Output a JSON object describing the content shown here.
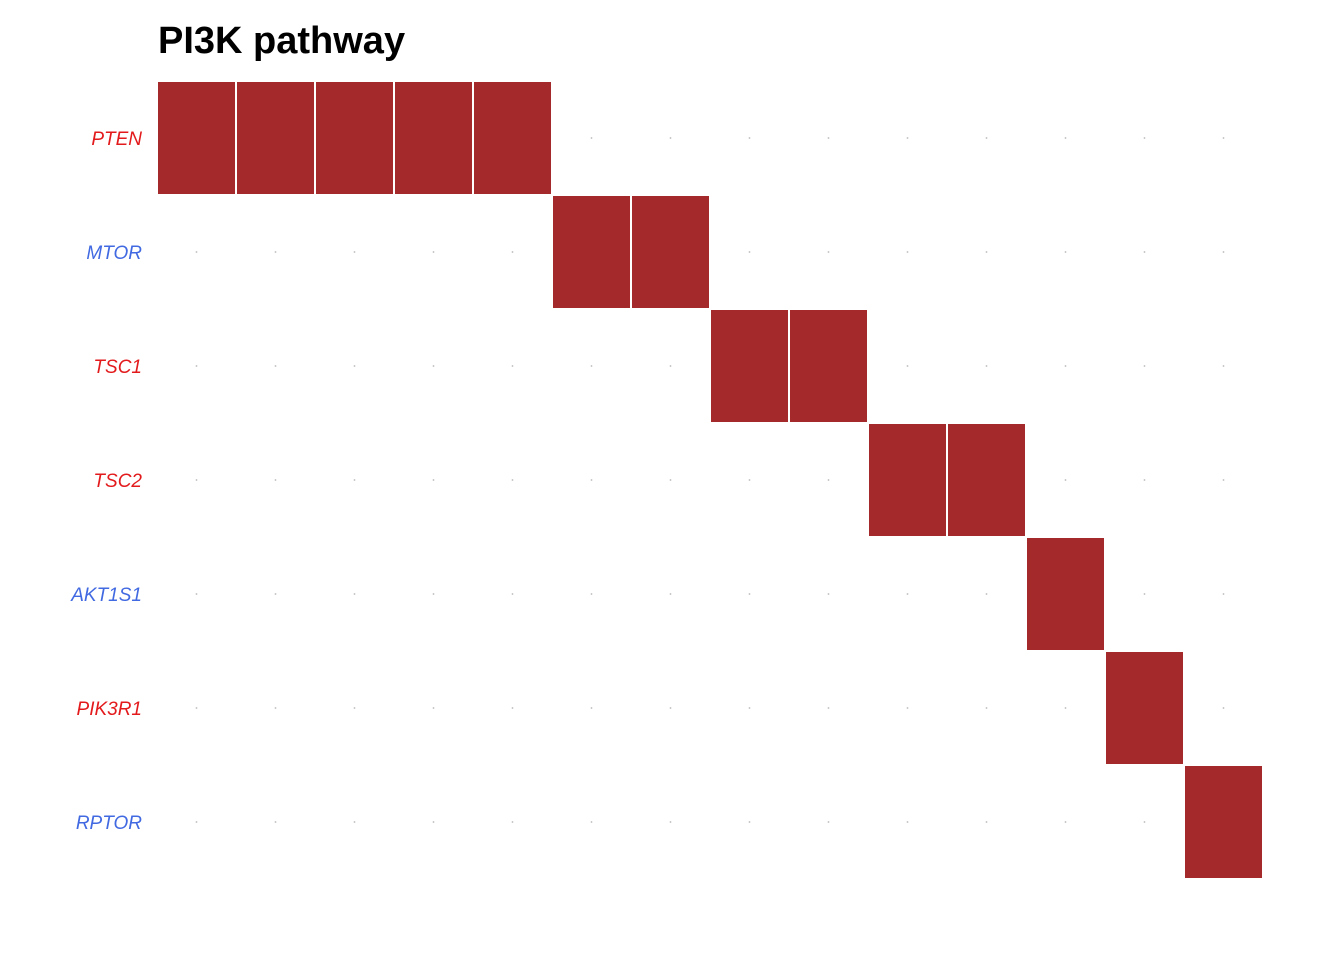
{
  "chart_data": {
    "type": "heatmap",
    "title": "PI3K pathway",
    "xlabel": "",
    "ylabel": "",
    "rows": [
      "PTEN",
      "MTOR",
      "TSC1",
      "TSC2",
      "AKT1S1",
      "PIK3R1",
      "RPTOR"
    ],
    "row_label_colors": [
      "#e31a1c",
      "#4169e1",
      "#e31a1c",
      "#e31a1c",
      "#4169e1",
      "#e31a1c",
      "#4169e1"
    ],
    "num_samples": 14,
    "cells": [
      [
        0,
        0
      ],
      [
        0,
        1
      ],
      [
        0,
        2
      ],
      [
        0,
        3
      ],
      [
        0,
        4
      ],
      [
        1,
        5
      ],
      [
        1,
        6
      ],
      [
        2,
        7
      ],
      [
        2,
        8
      ],
      [
        3,
        9
      ],
      [
        3,
        10
      ],
      [
        4,
        11
      ],
      [
        5,
        12
      ],
      [
        6,
        13
      ]
    ],
    "altered_color": "#a3292a",
    "background_marker_color": "#bbbbbb",
    "grid": false,
    "legend": "none"
  }
}
